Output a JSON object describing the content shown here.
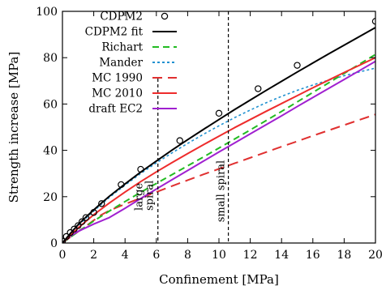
{
  "chart_data": {
    "type": "line",
    "xlabel": "Confinement [MPa]",
    "ylabel": "Strength increase [MPa]",
    "xlim": [
      0,
      20
    ],
    "ylim": [
      0,
      100
    ],
    "xticks": [
      0,
      2,
      4,
      6,
      8,
      10,
      12,
      14,
      16,
      18,
      20
    ],
    "yticks": [
      0,
      20,
      40,
      60,
      80,
      100
    ],
    "grid": false,
    "legend": "top-left",
    "series": [
      {
        "name": "CDPM2",
        "kind": "points",
        "marker": "open-circle",
        "color": "#000000",
        "x": [
          0,
          0.25,
          0.5,
          0.75,
          1.0,
          1.25,
          1.5,
          2.0,
          2.5,
          3.75,
          5.0,
          7.5,
          10.0,
          12.5,
          15.0,
          20.0
        ],
        "y": [
          0.8,
          2.8,
          4.5,
          6.0,
          7.5,
          9.2,
          11.0,
          13.2,
          17.0,
          25.2,
          31.8,
          44.2,
          56.0,
          66.6,
          76.7,
          95.7
        ]
      },
      {
        "name": "CDPM2 fit",
        "kind": "line",
        "dash": "solid",
        "color": "#000000",
        "x": [
          0,
          0.5,
          1,
          1.5,
          2,
          2.5,
          3,
          4,
          5,
          6,
          7,
          8,
          9,
          10,
          11,
          12,
          13,
          14,
          15,
          16,
          17,
          18,
          19,
          20
        ],
        "y": [
          0,
          4.1,
          7.9,
          11.2,
          14.3,
          17.3,
          20.2,
          25.5,
          30.6,
          35.4,
          40.1,
          44.6,
          49.0,
          53.3,
          57.6,
          61.7,
          65.8,
          69.8,
          73.8,
          77.7,
          81.6,
          85.4,
          89.2,
          93.0
        ]
      },
      {
        "name": "Richart",
        "kind": "line",
        "dash": "dashed",
        "color": "#22bb22",
        "x": [
          0,
          1,
          2,
          3,
          4,
          5,
          6,
          7,
          8,
          9,
          10,
          11,
          12,
          13,
          14,
          15,
          16,
          17,
          18,
          19,
          20
        ],
        "y": [
          0,
          4.9,
          9.5,
          13.8,
          17.9,
          21.9,
          25.7,
          29.5,
          33.3,
          37.1,
          41.0,
          44.9,
          48.8,
          52.8,
          56.8,
          60.9,
          65.0,
          69.1,
          73.2,
          77.3,
          81.4
        ]
      },
      {
        "name": "Mander",
        "kind": "line",
        "dash": "dotted",
        "color": "#1e90d0",
        "x": [
          0,
          0.5,
          1,
          1.5,
          2,
          2.5,
          3,
          4,
          5,
          6,
          7,
          8,
          9,
          10,
          11,
          12,
          13,
          14,
          15,
          16,
          17,
          18,
          19,
          20
        ],
        "y": [
          0,
          3.8,
          7.4,
          10.7,
          13.8,
          16.8,
          19.7,
          25.0,
          30.0,
          34.6,
          38.9,
          43.0,
          46.9,
          50.6,
          54.1,
          57.4,
          60.5,
          63.3,
          65.9,
          68.2,
          70.3,
          72.2,
          73.9,
          75.5
        ]
      },
      {
        "name": "MC 1990",
        "kind": "line",
        "dash": "long-dashed",
        "color": "#e03030",
        "x": [
          0,
          0.5,
          1,
          1.5,
          2,
          2.5,
          3,
          4,
          5,
          6,
          7,
          8,
          9,
          10,
          11,
          12,
          13,
          14,
          15,
          16,
          17,
          18,
          19,
          20
        ],
        "y": [
          0,
          2.5,
          4.9,
          7.3,
          9.8,
          12.2,
          14.0,
          16.8,
          19.4,
          22.0,
          24.6,
          27.1,
          29.6,
          32.0,
          34.4,
          36.8,
          39.2,
          41.6,
          43.9,
          46.3,
          48.6,
          50.9,
          53.2,
          55.5
        ]
      },
      {
        "name": "MC 2010",
        "kind": "line",
        "dash": "solid",
        "color": "#ee2c2c",
        "x": [
          0,
          1,
          2,
          3,
          4,
          5,
          6,
          7,
          8,
          9,
          10,
          11,
          12,
          13,
          14,
          15,
          16,
          17,
          18,
          19,
          20
        ],
        "y": [
          0,
          6.5,
          12.2,
          17.3,
          22.0,
          26.5,
          30.7,
          34.7,
          38.6,
          42.4,
          46.1,
          49.8,
          53.3,
          56.8,
          60.2,
          63.6,
          67.0,
          70.3,
          73.6,
          76.8,
          80.0
        ]
      },
      {
        "name": "draft EC2",
        "kind": "line",
        "dash": "solid",
        "color": "#a020d0",
        "x": [
          0,
          0.5,
          1,
          2,
          3,
          4,
          5,
          6,
          7,
          8,
          9,
          10,
          11,
          12,
          13,
          14,
          15,
          16,
          17,
          18,
          19,
          20
        ],
        "y": [
          0,
          2.9,
          5.0,
          8.2,
          11.0,
          15.0,
          19.2,
          23.3,
          27.3,
          31.3,
          35.3,
          39.3,
          43.2,
          47.1,
          51.0,
          54.9,
          58.9,
          62.8,
          66.7,
          70.6,
          74.5,
          78.4
        ]
      }
    ],
    "annotations": [
      {
        "x": 6.1,
        "text": "large\nspiral",
        "style": "vertical-dashed"
      },
      {
        "x": 10.6,
        "text": "small spiral",
        "style": "vertical-dashed"
      }
    ]
  }
}
